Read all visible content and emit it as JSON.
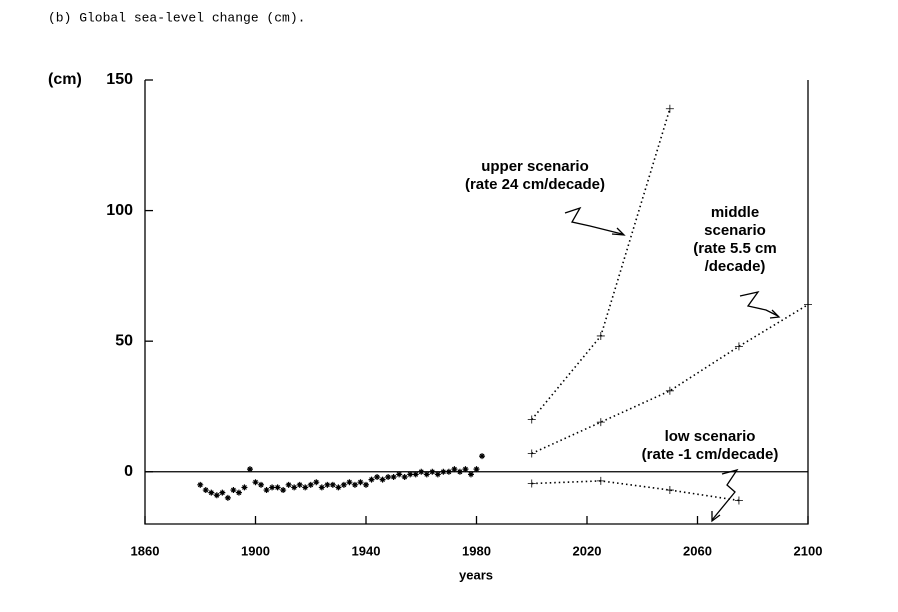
{
  "chart_data": {
    "type": "line",
    "title": "(b) Global sea-level change (cm).",
    "y_label": "(cm)",
    "x_label": "years",
    "xlim": [
      1860,
      2100
    ],
    "xticks": [
      1860,
      1900,
      1940,
      1980,
      2020,
      2060,
      2100
    ],
    "ylim": [
      -20,
      150
    ],
    "yticks": [
      0,
      50,
      100,
      150
    ],
    "zero_line": true,
    "series": [
      {
        "mode": "scatter",
        "color": "#000000",
        "x": [
          1880,
          1882,
          1884,
          1886,
          1888,
          1890,
          1892,
          1894,
          1896,
          1898,
          1900,
          1902,
          1904,
          1906,
          1908,
          1910,
          1912,
          1914,
          1916,
          1918,
          1920,
          1922,
          1924,
          1926,
          1928,
          1930,
          1932,
          1934,
          1936,
          1938,
          1940,
          1942,
          1944,
          1946,
          1948,
          1950,
          1952,
          1954,
          1956,
          1958,
          1960,
          1962,
          1964,
          1966,
          1968,
          1970,
          1972,
          1974,
          1976,
          1978,
          1980,
          1982
        ],
        "values": [
          -5,
          -7,
          -8,
          -9,
          -8,
          -10,
          -7,
          -8,
          -6,
          1,
          -4,
          -5,
          -7,
          -6,
          -6,
          -7,
          -5,
          -6,
          -5,
          -6,
          -5,
          -4,
          -6,
          -5,
          -5,
          -6,
          -5,
          -4,
          -5,
          -4,
          -5,
          -3,
          -2,
          -3,
          -2,
          -2,
          -1,
          -2,
          -1,
          -1,
          0,
          -1,
          0,
          -1,
          0,
          0,
          1,
          0,
          1,
          -1,
          1,
          6
        ]
      },
      {
        "mode": "dotted",
        "color": "#000000",
        "x": [
          2000,
          2025,
          2050
        ],
        "values": [
          20,
          52,
          139
        ]
      },
      {
        "mode": "dotted",
        "color": "#000000",
        "x": [
          2000,
          2025,
          2050,
          2075,
          2100
        ],
        "values": [
          7,
          19,
          31,
          48,
          64
        ]
      },
      {
        "mode": "dotted",
        "color": "#000000",
        "x": [
          2000,
          2025,
          2050,
          2075
        ],
        "values": [
          -4.5,
          -3.5,
          -7,
          -11
        ]
      }
    ],
    "annotations": [
      [
        "upper scenario",
        "(rate 24 cm/decade)"
      ],
      [
        "middle",
        "scenario",
        "(rate 5.5 cm",
        "/decade)"
      ],
      [
        "low scenario",
        "(rate -1 cm/decade)"
      ]
    ]
  }
}
